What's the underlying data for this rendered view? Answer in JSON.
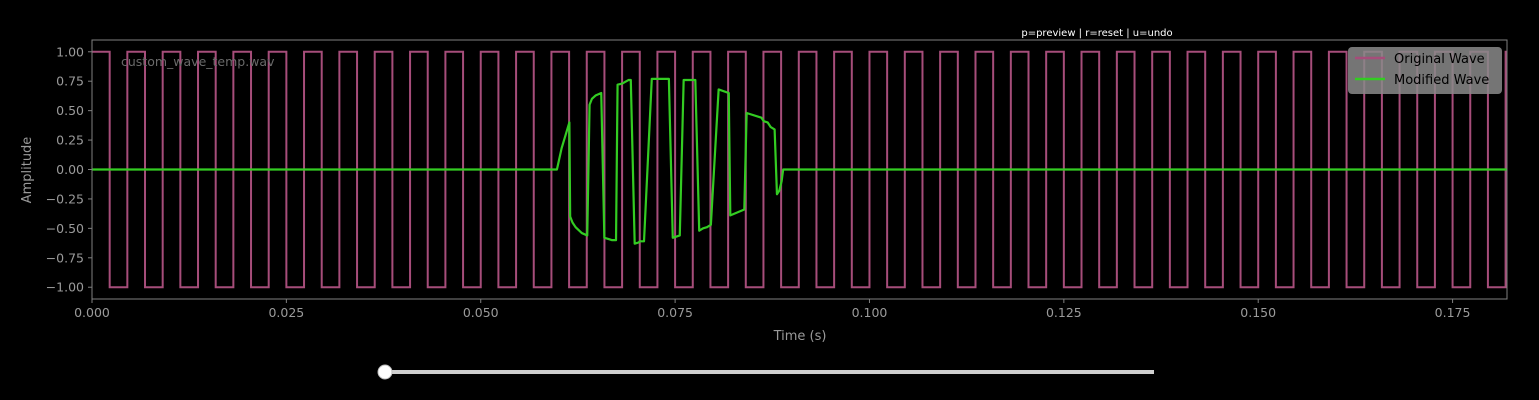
{
  "header": {
    "hint_text": "p=preview | r=reset | u=undo"
  },
  "slider": {
    "value": 0.0
  },
  "colors": {
    "background": "#000000",
    "axes_frame": "#808080",
    "tick_text": "#9a9a9a",
    "original_wave": "#a64d7a",
    "modified_wave": "#33cc22",
    "legend_bg": "#8a8a8a",
    "slider_track": "#d0d0d0",
    "slider_knob": "#ffffff"
  },
  "chart_data": {
    "type": "line",
    "title": "",
    "annotation": "custom_wave_temp.wav",
    "xlabel": "Time (s)",
    "ylabel": "Amplitude",
    "xlim": [
      0,
      0.182
    ],
    "ylim": [
      -1.1,
      1.1
    ],
    "x_ticks": [
      0,
      0.025,
      0.05,
      0.075,
      0.1,
      0.125,
      0.15,
      0.175
    ],
    "x_tick_labels": [
      "0.000",
      "0.025",
      "0.050",
      "0.075",
      "0.100",
      "0.125",
      "0.150",
      "0.175"
    ],
    "y_ticks": [
      1.0,
      0.75,
      0.5,
      0.25,
      0.0,
      -0.25,
      -0.5,
      -0.75,
      -1.0
    ],
    "y_tick_labels": [
      "1.00",
      "0.75",
      "0.50",
      "0.25",
      "0.00",
      "−0.25",
      "−0.50",
      "−0.75",
      "−1.00"
    ],
    "legend_position": "top-right",
    "grid": false,
    "series": [
      {
        "name": "Original Wave",
        "kind": "square",
        "frequency_hz": 220,
        "amplitude": 1.0,
        "t_start": 0,
        "t_end": 0.182
      },
      {
        "name": "Modified Wave",
        "kind": "points",
        "x": [
          0,
          0.0598,
          0.0604,
          0.0614,
          0.0615,
          0.0618,
          0.0622,
          0.063,
          0.0637,
          0.064,
          0.0643,
          0.0648,
          0.0655,
          0.0659,
          0.0664,
          0.0669,
          0.0674,
          0.0676,
          0.0682,
          0.069,
          0.0693,
          0.0698,
          0.0703,
          0.0705,
          0.071,
          0.072,
          0.0724,
          0.0732,
          0.0742,
          0.0747,
          0.0756,
          0.0761,
          0.0768,
          0.0776,
          0.0781,
          0.0786,
          0.0791,
          0.0796,
          0.0806,
          0.0819,
          0.0821,
          0.0839,
          0.0842,
          0.0861,
          0.0864,
          0.0869,
          0.0873,
          0.0878,
          0.0881,
          0.0884,
          0.0887,
          0.0889,
          0.0892,
          0.182
        ],
        "y": [
          0,
          0,
          0.18,
          0.4,
          -0.4,
          -0.45,
          -0.49,
          -0.54,
          -0.56,
          0.55,
          0.6,
          0.63,
          0.65,
          -0.58,
          -0.59,
          -0.6,
          -0.6,
          0.72,
          0.73,
          0.76,
          0.76,
          -0.63,
          -0.62,
          -0.61,
          -0.61,
          0.77,
          0.77,
          0.77,
          0.77,
          -0.58,
          -0.56,
          0.76,
          0.76,
          0.76,
          -0.52,
          -0.5,
          -0.49,
          -0.47,
          0.68,
          0.65,
          -0.39,
          -0.34,
          0.48,
          0.44,
          0.41,
          0.4,
          0.36,
          0.34,
          -0.21,
          -0.18,
          -0.1,
          0,
          0,
          0
        ]
      }
    ]
  }
}
